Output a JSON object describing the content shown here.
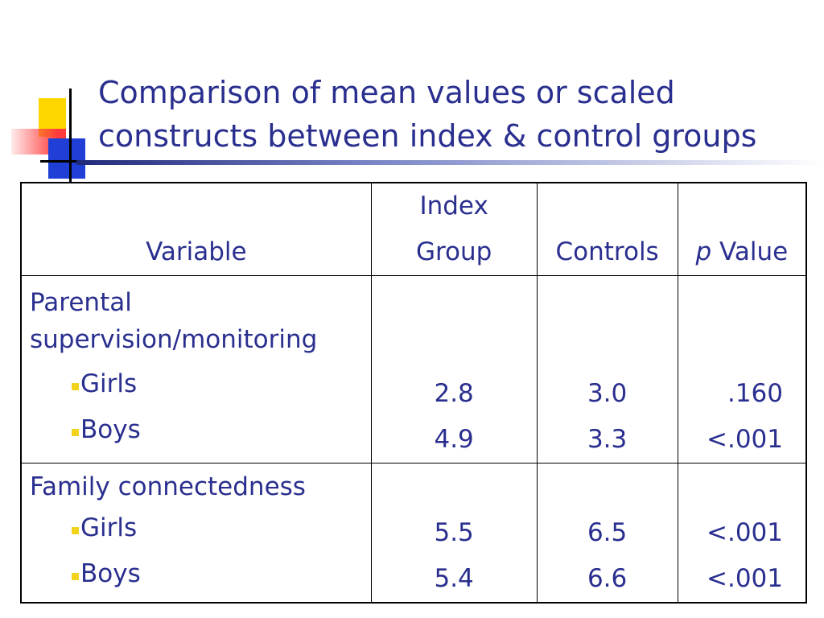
{
  "slide": {
    "title_line1": "Comparison of mean values or scaled",
    "title_line2": "constructs between index & control groups"
  },
  "table": {
    "headers": {
      "variable": "Variable",
      "index_line1": "Index",
      "index_line2": "Group",
      "controls": "Controls",
      "p_italic": "p",
      "p_rest": " Value"
    },
    "groups": [
      {
        "variable_line1": "Parental",
        "variable_line2": "supervision/monitoring",
        "rows": [
          {
            "label": "Girls",
            "index": "2.8",
            "controls": "3.0",
            "p": ".160"
          },
          {
            "label": "Boys",
            "index": "4.9",
            "controls": "3.3",
            "p": "<.001"
          }
        ]
      },
      {
        "variable_line1": "Family connectedness",
        "rows": [
          {
            "label": "Girls",
            "index": "5.5",
            "controls": "6.5",
            "p": "<.001"
          },
          {
            "label": "Boys",
            "index": "5.4",
            "controls": "6.6",
            "p": "<.001"
          }
        ]
      }
    ]
  },
  "colors": {
    "text": "#2a2f8f",
    "bullet": "#f2d21a",
    "logo_yellow": "#ffd700",
    "logo_red": "#ff3b3b",
    "logo_blue": "#1f3fd6"
  }
}
